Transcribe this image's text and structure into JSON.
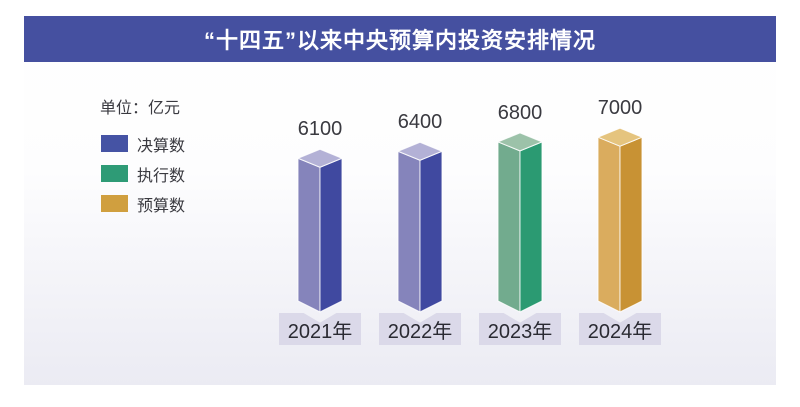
{
  "header": {
    "title": "“十四五”以来中央预算内投资安排情况",
    "bar_color": "#4550A0",
    "text_color": "#ffffff"
  },
  "legend": {
    "unit_label": "单位：亿元",
    "items": [
      {
        "label": "决算数",
        "color": "#4553A4"
      },
      {
        "label": "执行数",
        "color": "#2E9B76"
      },
      {
        "label": "预算数",
        "color": "#D09F3F"
      }
    ]
  },
  "chart_data": {
    "type": "bar",
    "title": "“十四五”以来中央预算内投资安排情况",
    "unit": "亿元",
    "categories": [
      "2021年",
      "2022年",
      "2023年",
      "2024年"
    ],
    "values": [
      6100,
      6400,
      6800,
      7000
    ],
    "series_of_bar": [
      "决算数",
      "决算数",
      "执行数",
      "预算数"
    ],
    "axes_visible": false,
    "grid": false,
    "legend_position": "left",
    "value_label_color": "#3A3A40",
    "category_box_color": "#DBD9E9",
    "category_text_color": "#2A2A32",
    "bar_faces": [
      {
        "left": "#8584BB",
        "right": "#4049A0",
        "top": "#B3B1D6"
      },
      {
        "left": "#8584BB",
        "right": "#4049A0",
        "top": "#B3B1D6"
      },
      {
        "left": "#72AB8E",
        "right": "#2B9A72",
        "top": "#9CC2A9"
      },
      {
        "left": "#DAAC5E",
        "right": "#C89234",
        "top": "#E5C47E"
      }
    ]
  }
}
